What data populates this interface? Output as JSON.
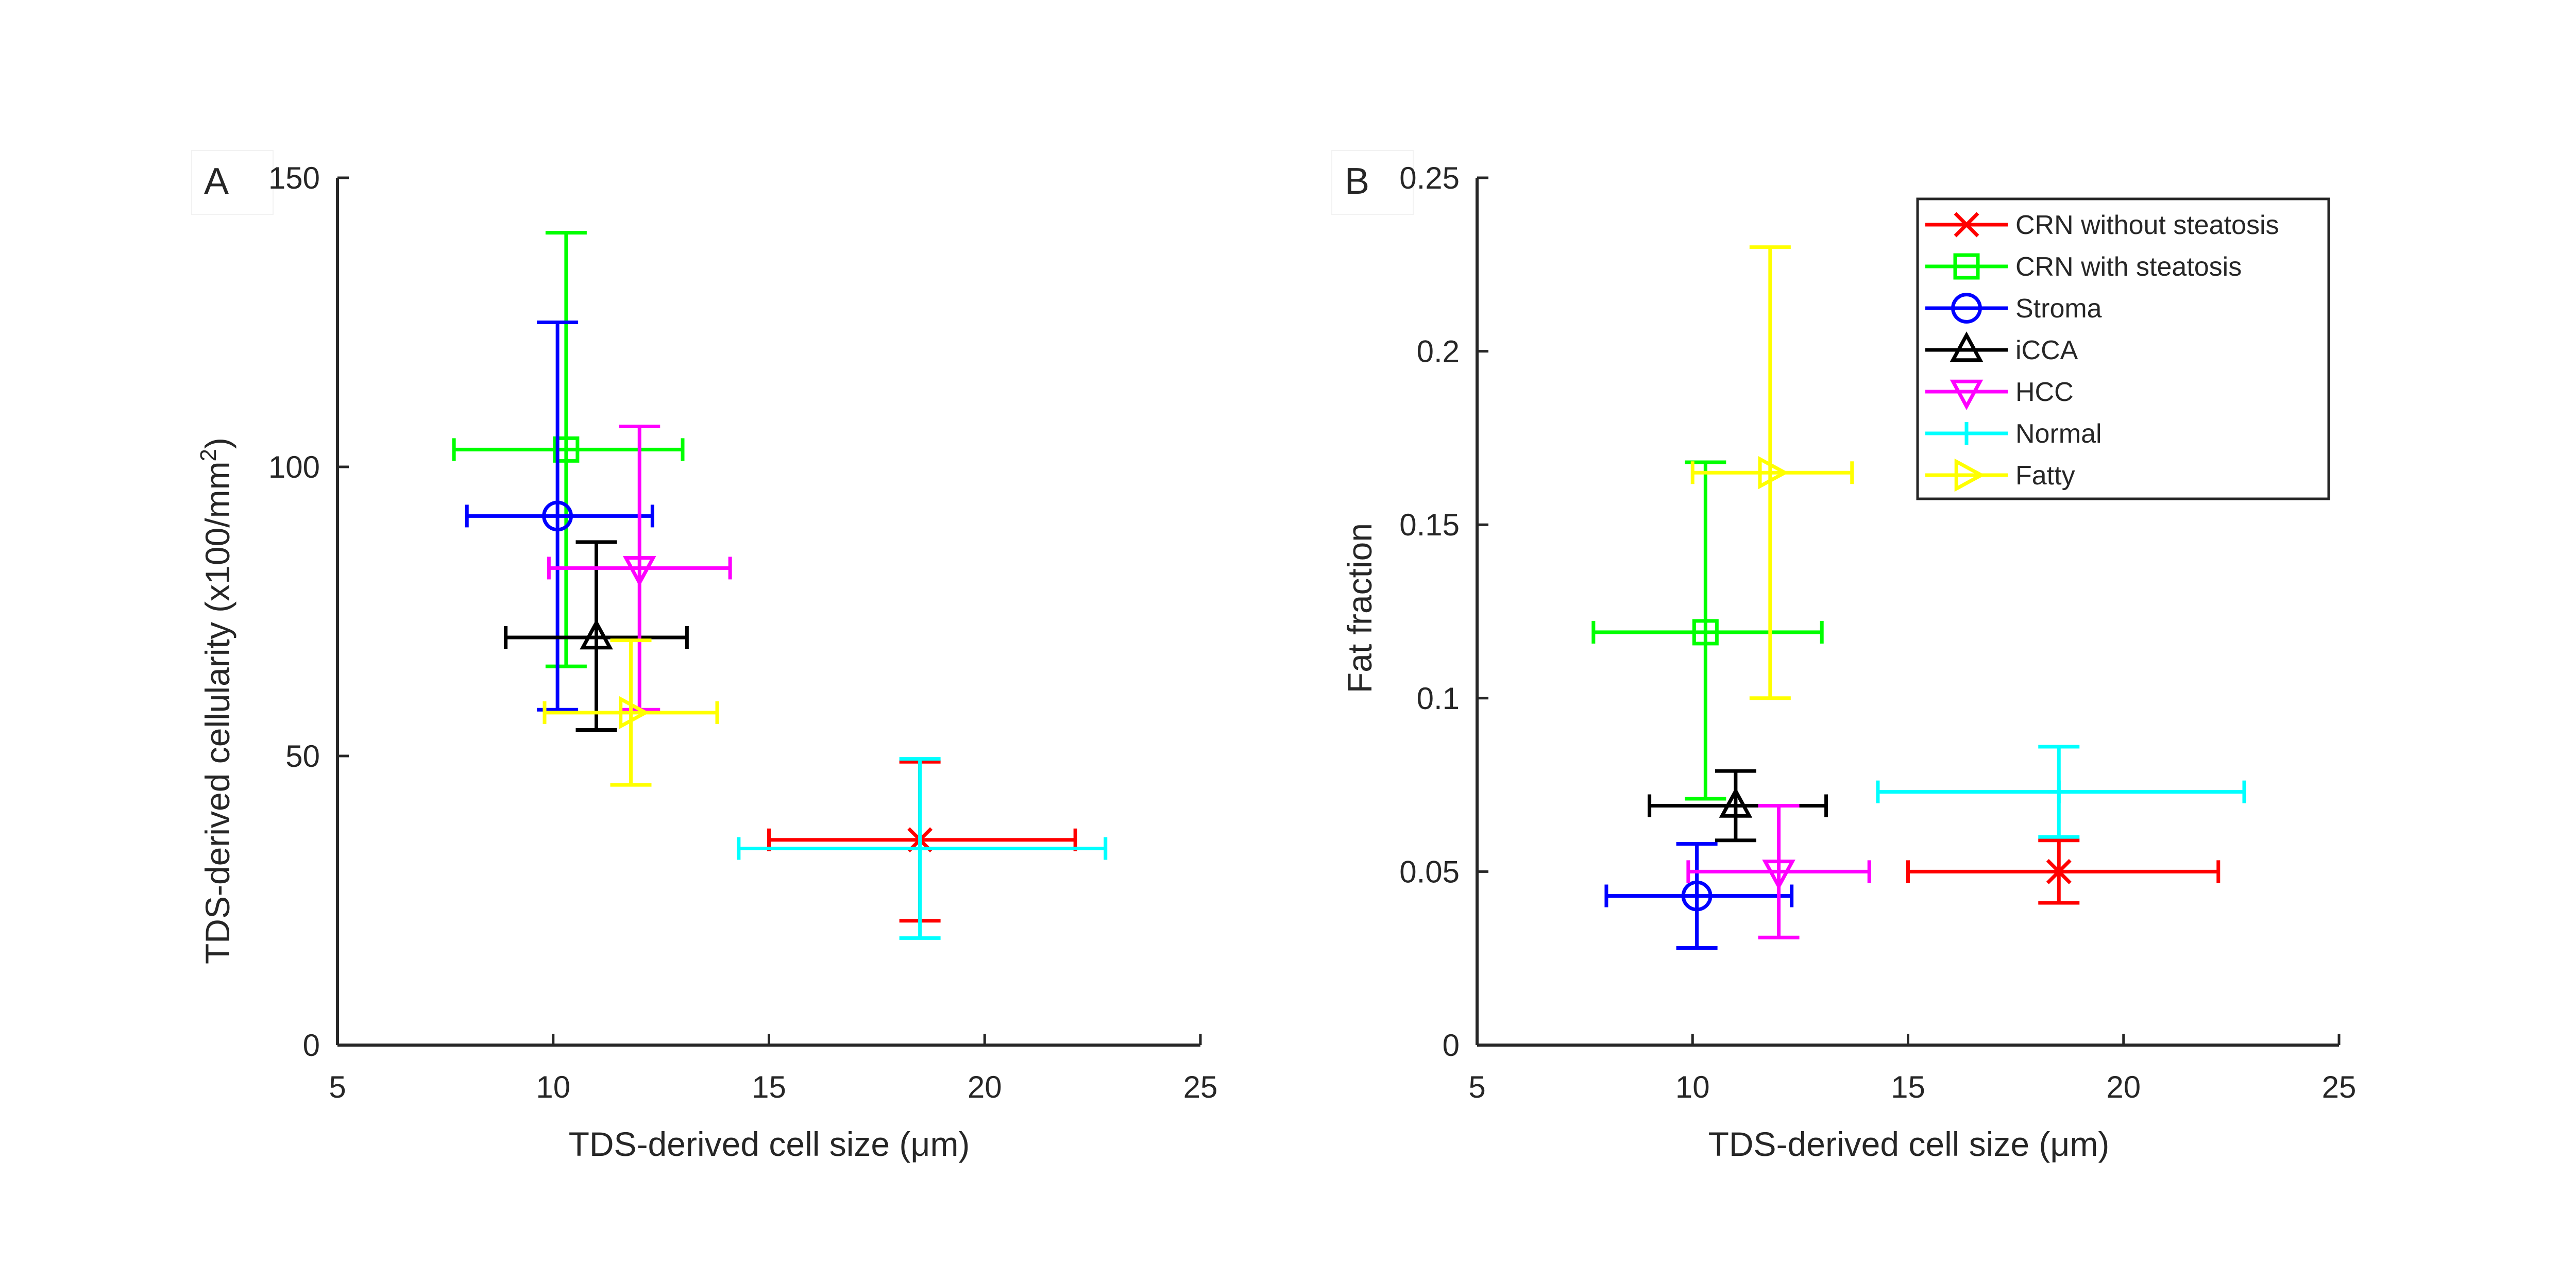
{
  "colors": {
    "CRN without steatosis": "#ff0000",
    "CRN with steatosis": "#00ff00",
    "Stroma": "#0000ff",
    "iCCA": "#000000",
    "HCC": "#ff00ff",
    "Normal": "#00ffff",
    "Fatty": "#ffff00"
  },
  "chart_data": [
    {
      "type": "scatter",
      "panel_label": "A",
      "title": "",
      "xlabel": "TDS-derived cell size (μm)",
      "ylabel": "TDS-derived cellularity (x100/mm2)",
      "ylabel_parts": {
        "main": "TDS-derived cellularity (x100/mm",
        "sup": "2",
        "tail": ")"
      },
      "xlim": [
        5,
        25
      ],
      "ylim": [
        0,
        150
      ],
      "xticks": [
        5,
        10,
        15,
        20,
        25
      ],
      "yticks": [
        0,
        50,
        100,
        150
      ],
      "grid": false,
      "series": [
        {
          "name": "CRN without steatosis",
          "marker": "x",
          "x": 18.5,
          "y": 35.5,
          "x_err": [
            15.0,
            22.1
          ],
          "y_err": [
            21.5,
            49.0
          ]
        },
        {
          "name": "CRN with steatosis",
          "marker": "square",
          "x": 10.3,
          "y": 103.0,
          "x_err": [
            7.7,
            13.0
          ],
          "y_err": [
            65.5,
            140.5
          ]
        },
        {
          "name": "Stroma",
          "marker": "circle",
          "x": 10.1,
          "y": 91.5,
          "x_err": [
            8.0,
            12.3
          ],
          "y_err": [
            58.0,
            125.0
          ]
        },
        {
          "name": "iCCA",
          "marker": "triangle-up",
          "x": 11.0,
          "y": 70.5,
          "x_err": [
            8.9,
            13.1
          ],
          "y_err": [
            54.5,
            87.0
          ]
        },
        {
          "name": "HCC",
          "marker": "triangle-down",
          "x": 12.0,
          "y": 82.5,
          "x_err": [
            9.9,
            14.1
          ],
          "y_err": [
            58.0,
            107.0
          ]
        },
        {
          "name": "Normal",
          "marker": "plus",
          "x": 18.5,
          "y": 34.0,
          "x_err": [
            14.3,
            22.8
          ],
          "y_err": [
            18.5,
            49.5
          ]
        },
        {
          "name": "Fatty",
          "marker": "triangle-right",
          "x": 11.8,
          "y": 57.5,
          "x_err": [
            9.8,
            13.8
          ],
          "y_err": [
            45.0,
            70.0
          ]
        }
      ]
    },
    {
      "type": "scatter",
      "panel_label": "B",
      "title": "",
      "xlabel": "TDS-derived cell size (μm)",
      "ylabel": "Fat fraction",
      "xlim": [
        5,
        25
      ],
      "ylim": [
        0,
        0.25
      ],
      "xticks": [
        5,
        10,
        15,
        20,
        25
      ],
      "yticks": [
        0,
        0.05,
        0.1,
        0.15,
        0.2,
        0.25
      ],
      "grid": false,
      "legend_position": "top-right",
      "series": [
        {
          "name": "CRN without steatosis",
          "marker": "x",
          "x": 18.5,
          "y": 0.05,
          "x_err": [
            15.0,
            22.2
          ],
          "y_err": [
            0.041,
            0.059
          ]
        },
        {
          "name": "CRN with steatosis",
          "marker": "square",
          "x": 10.3,
          "y": 0.119,
          "x_err": [
            7.7,
            13.0
          ],
          "y_err": [
            0.071,
            0.168
          ]
        },
        {
          "name": "Stroma",
          "marker": "circle",
          "x": 10.1,
          "y": 0.043,
          "x_err": [
            8.0,
            12.3
          ],
          "y_err": [
            0.028,
            0.058
          ]
        },
        {
          "name": "iCCA",
          "marker": "triangle-up",
          "x": 11.0,
          "y": 0.069,
          "x_err": [
            9.0,
            13.1
          ],
          "y_err": [
            0.059,
            0.079
          ]
        },
        {
          "name": "HCC",
          "marker": "triangle-down",
          "x": 12.0,
          "y": 0.05,
          "x_err": [
            9.9,
            14.1
          ],
          "y_err": [
            0.031,
            0.069
          ]
        },
        {
          "name": "Normal",
          "marker": "plus",
          "x": 18.5,
          "y": 0.073,
          "x_err": [
            14.3,
            22.8
          ],
          "y_err": [
            0.06,
            0.086
          ]
        },
        {
          "name": "Fatty",
          "marker": "triangle-right",
          "x": 11.8,
          "y": 0.165,
          "x_err": [
            10.0,
            13.7
          ],
          "y_err": [
            0.1,
            0.23
          ]
        }
      ]
    }
  ]
}
